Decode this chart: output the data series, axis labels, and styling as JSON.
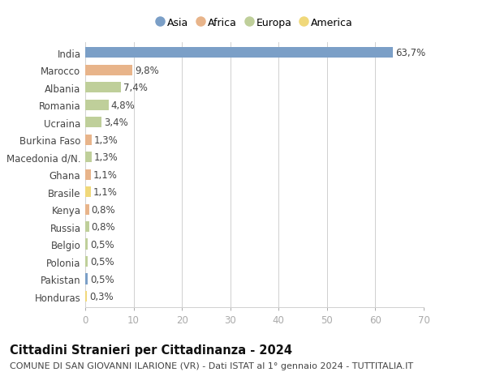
{
  "countries": [
    "India",
    "Marocco",
    "Albania",
    "Romania",
    "Ucraina",
    "Burkina Faso",
    "Macedonia d/N.",
    "Ghana",
    "Brasile",
    "Kenya",
    "Russia",
    "Belgio",
    "Polonia",
    "Pakistan",
    "Honduras"
  ],
  "values": [
    63.7,
    9.8,
    7.4,
    4.8,
    3.4,
    1.3,
    1.3,
    1.1,
    1.1,
    0.8,
    0.8,
    0.5,
    0.5,
    0.5,
    0.3
  ],
  "labels": [
    "63,7%",
    "9,8%",
    "7,4%",
    "4,8%",
    "3,4%",
    "1,3%",
    "1,3%",
    "1,1%",
    "1,1%",
    "0,8%",
    "0,8%",
    "0,5%",
    "0,5%",
    "0,5%",
    "0,3%"
  ],
  "continents": [
    "Asia",
    "Africa",
    "Europa",
    "Europa",
    "Europa",
    "Africa",
    "Europa",
    "Africa",
    "America",
    "Africa",
    "Europa",
    "Europa",
    "Europa",
    "Asia",
    "America"
  ],
  "continent_colors": {
    "Asia": "#7b9fc7",
    "Africa": "#e8b48a",
    "Europa": "#bfcf9a",
    "America": "#f0d87a"
  },
  "legend_order": [
    "Asia",
    "Africa",
    "Europa",
    "America"
  ],
  "title": "Cittadini Stranieri per Cittadinanza - 2024",
  "subtitle": "COMUNE DI SAN GIOVANNI ILARIONE (VR) - Dati ISTAT al 1° gennaio 2024 - TUTTITALIA.IT",
  "xlim": [
    0,
    70
  ],
  "xticks": [
    0,
    10,
    20,
    30,
    40,
    50,
    60,
    70
  ],
  "bg_color": "#ffffff",
  "grid_color": "#d0d0d0",
  "bar_height": 0.62,
  "label_fontsize": 8.5,
  "tick_fontsize": 8.5,
  "title_fontsize": 10.5,
  "subtitle_fontsize": 8.0
}
